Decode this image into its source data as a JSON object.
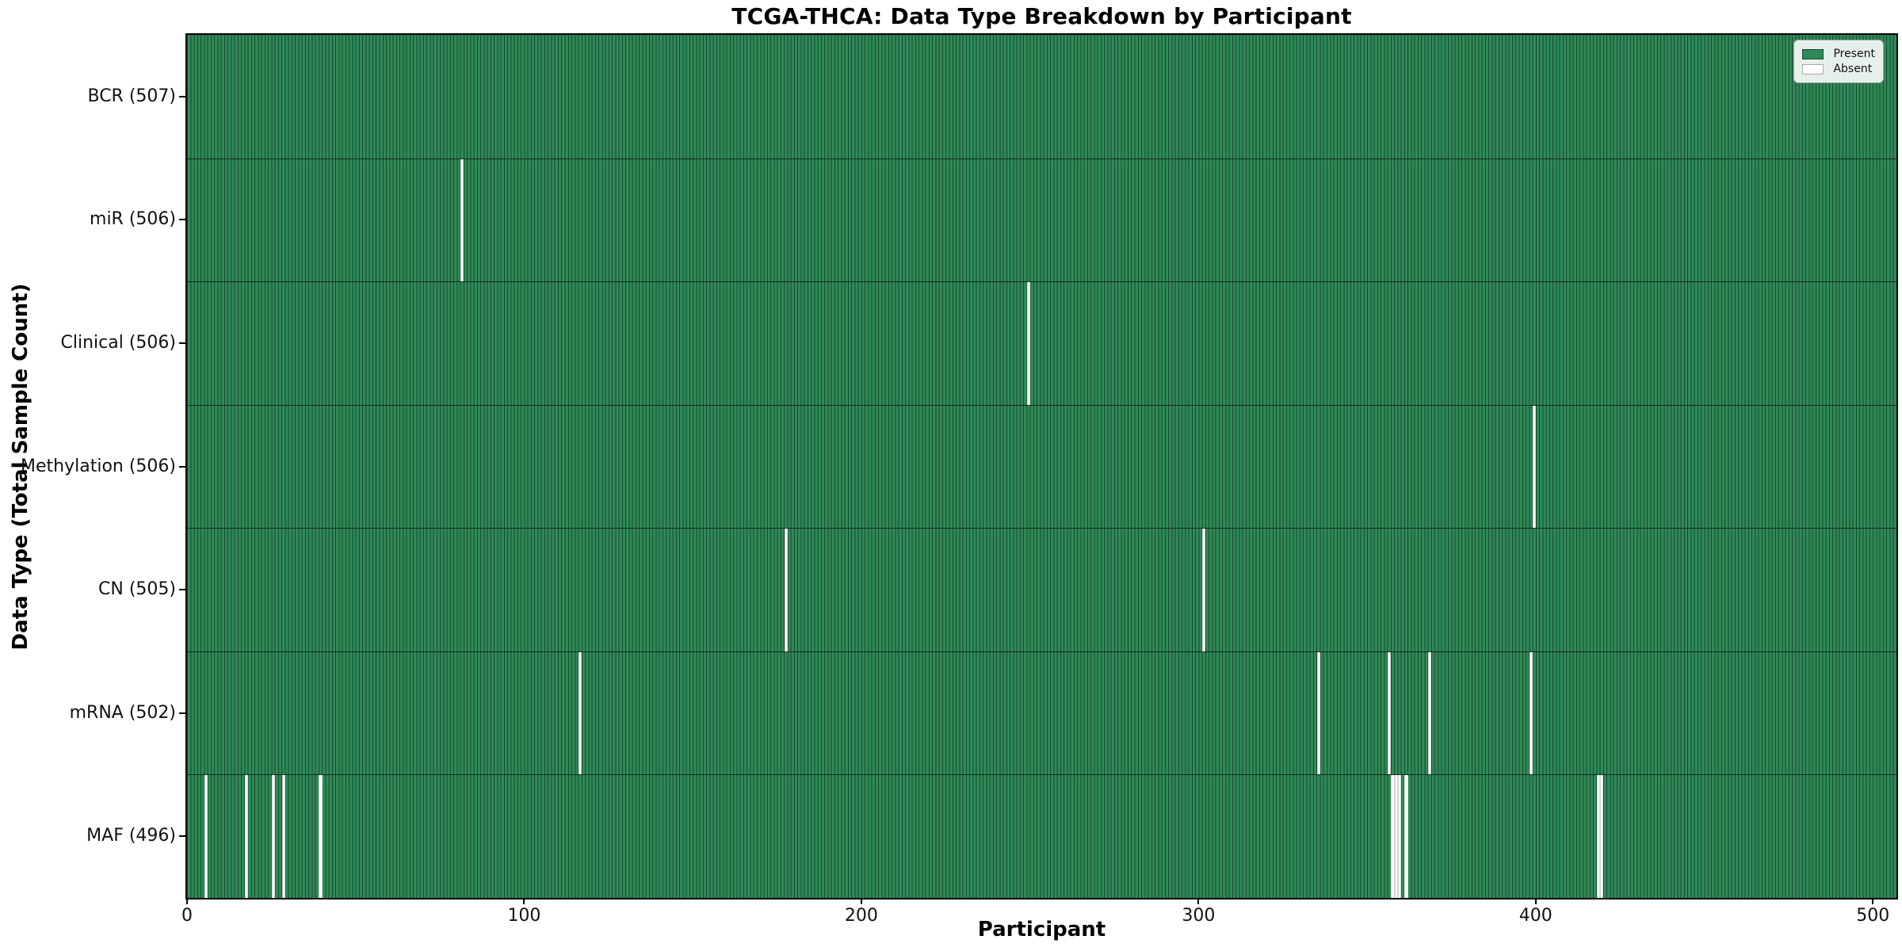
{
  "colors": {
    "present_fill": "#2e8b57",
    "present_edge": "#1c4630",
    "absent_fill": "#ffffff",
    "row_separator": "#152a1c",
    "axis": "#000000"
  },
  "chart_data": {
    "type": "heatmap",
    "title": "TCGA-THCA: Data Type Breakdown by Participant",
    "xlabel": "Participant",
    "ylabel": "Data Type (Total Sample Count)",
    "x_ticks": [
      0,
      100,
      200,
      300,
      400,
      500
    ],
    "x_range": [
      0,
      507
    ],
    "n_participants": 507,
    "grid": false,
    "legend": [
      "Present",
      "Absent"
    ],
    "legend_position": "upper right",
    "rows": [
      {
        "label": "BCR (507)",
        "data_type": "BCR",
        "present_count": 507,
        "absent_participants": []
      },
      {
        "label": "miR (506)",
        "data_type": "miR",
        "present_count": 506,
        "absent_participants": [
          81
        ]
      },
      {
        "label": "Clinical (506)",
        "data_type": "Clinical",
        "present_count": 506,
        "absent_participants": [
          249
        ]
      },
      {
        "label": "Methylation (506)",
        "data_type": "Methylation",
        "present_count": 506,
        "absent_participants": [
          399
        ]
      },
      {
        "label": "CN (505)",
        "data_type": "CN",
        "present_count": 505,
        "absent_participants": [
          177,
          301
        ]
      },
      {
        "label": "mRNA (502)",
        "data_type": "mRNA",
        "present_count": 502,
        "absent_participants": [
          116,
          335,
          356,
          368,
          398
        ]
      },
      {
        "label": "MAF (496)",
        "data_type": "MAF",
        "present_count": 496,
        "absent_participants": [
          5,
          17,
          25,
          28,
          39,
          357,
          358,
          359,
          361,
          418,
          419
        ]
      }
    ]
  }
}
